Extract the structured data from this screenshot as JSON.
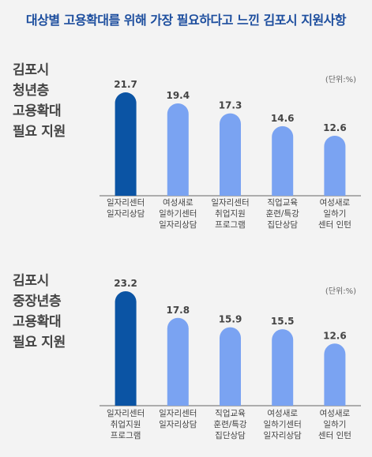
{
  "title": "대상별 고용확대를 위해 가장 필요하다고 느낀 김포시 지원사항",
  "colors": {
    "highlight": "#0b54a4",
    "bar": "#7aa3f2",
    "baseline": "#666666"
  },
  "chart_data": [
    {
      "type": "bar",
      "title": "김포시\n청년층\n고용확대\n필요 지원",
      "unit": "(단위:%)",
      "categories": [
        "일자리센터\n일자리상담",
        "여성새로\n일하기센터\n일자리상담",
        "일자리센터\n취업지원\n프로그램",
        "직업교육\n훈련/특강\n집단상담",
        "여성새로\n일하기\n센터 인턴"
      ],
      "values": [
        21.7,
        19.4,
        17.3,
        14.6,
        12.6
      ],
      "ylim": [
        0,
        23.2
      ]
    },
    {
      "type": "bar",
      "title": "김포시\n중장년층\n고용확대\n필요 지원",
      "unit": "(단위:%)",
      "categories": [
        "일자리센터\n취업지원\n프로그램",
        "일자리센터\n일자리상담",
        "직업교육\n훈련/특강\n집단상담",
        "여성새로\n일하기센터\n일자리상담",
        "여성새로\n일하기\n센터 인턴"
      ],
      "values": [
        23.2,
        17.8,
        15.9,
        15.5,
        12.6
      ],
      "ylim": [
        0,
        23.2
      ]
    }
  ]
}
